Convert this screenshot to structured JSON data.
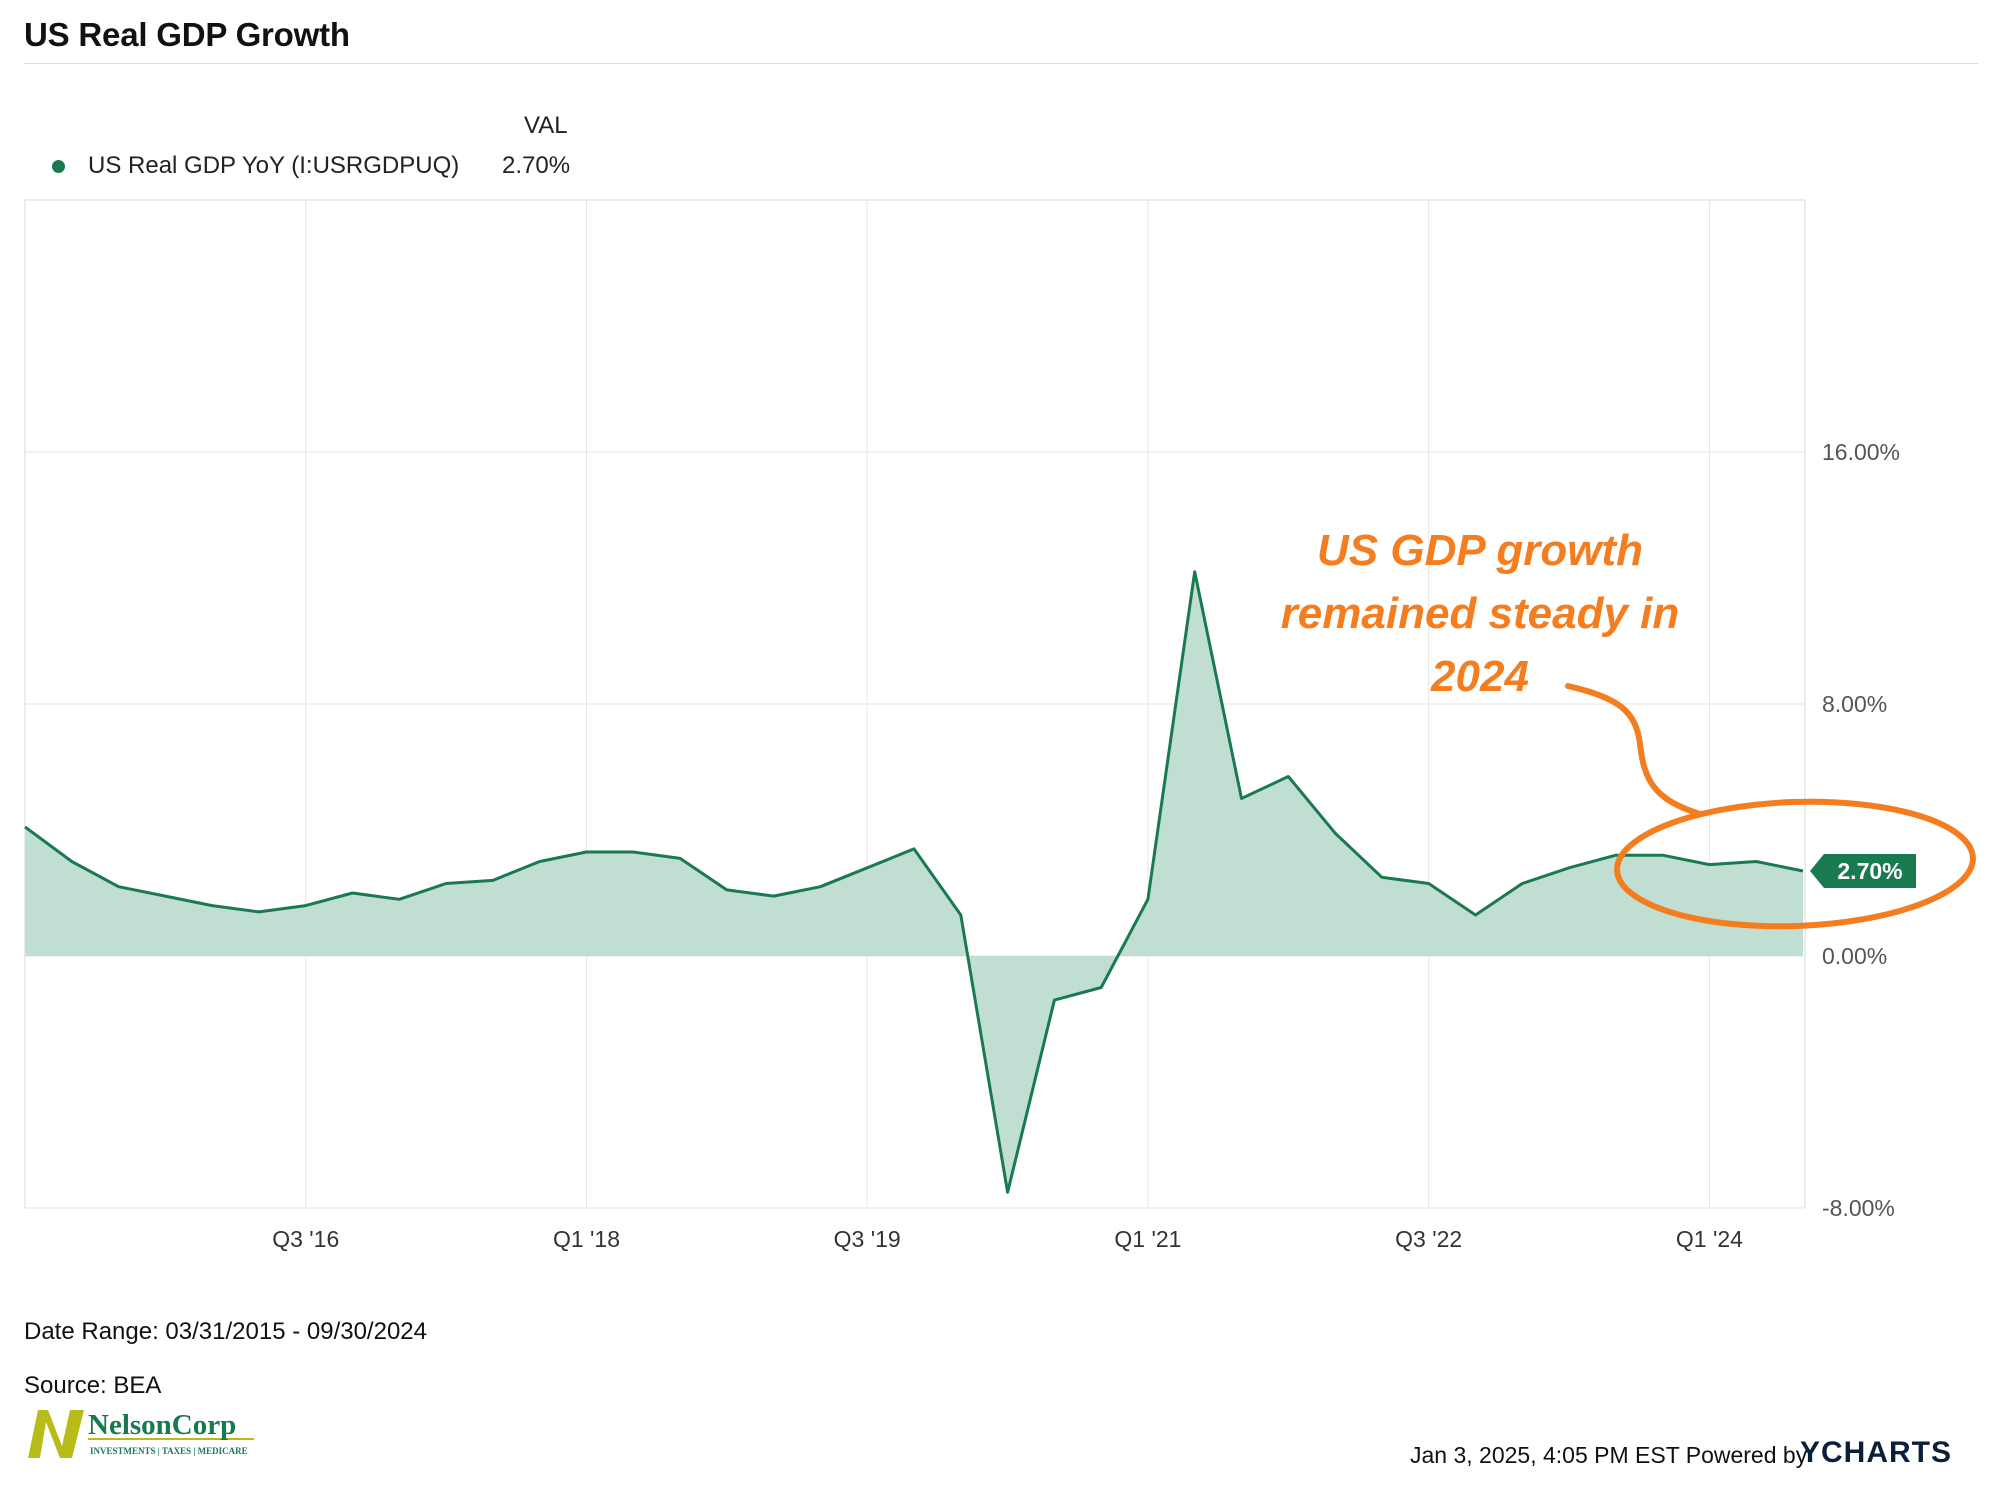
{
  "header": {
    "title": "US Real GDP Growth"
  },
  "legend": {
    "column_header": "VAL",
    "series_name": "US Real GDP YoY (I:USRGDPUQ)",
    "series_value": "2.70%"
  },
  "chart_data": {
    "type": "area",
    "title": "US Real GDP Growth",
    "xlabel": "",
    "ylabel": "",
    "x": [
      "Q1 '15",
      "Q2 '15",
      "Q3 '15",
      "Q4 '15",
      "Q1 '16",
      "Q2 '16",
      "Q3 '16",
      "Q4 '16",
      "Q1 '17",
      "Q2 '17",
      "Q3 '17",
      "Q4 '17",
      "Q1 '18",
      "Q2 '18",
      "Q3 '18",
      "Q4 '18",
      "Q1 '19",
      "Q2 '19",
      "Q3 '19",
      "Q4 '19",
      "Q1 '20",
      "Q2 '20",
      "Q3 '20",
      "Q4 '20",
      "Q1 '21",
      "Q2 '21",
      "Q3 '21",
      "Q4 '21",
      "Q1 '22",
      "Q2 '22",
      "Q3 '22",
      "Q4 '22",
      "Q1 '23",
      "Q2 '23",
      "Q3 '23",
      "Q4 '23",
      "Q1 '24",
      "Q2 '24",
      "Q3 '24"
    ],
    "series": [
      {
        "name": "US Real GDP YoY (I:USRGDPUQ)",
        "values": [
          4.1,
          3.0,
          2.2,
          1.9,
          1.6,
          1.4,
          1.6,
          2.0,
          1.8,
          2.3,
          2.4,
          3.0,
          3.3,
          3.3,
          3.1,
          2.1,
          1.9,
          2.2,
          2.8,
          3.4,
          1.3,
          -7.5,
          -1.4,
          -1.0,
          1.8,
          12.2,
          5.0,
          5.7,
          3.9,
          2.5,
          2.3,
          1.3,
          2.3,
          2.8,
          3.2,
          3.2,
          2.9,
          3.0,
          2.7
        ]
      }
    ],
    "x_ticks": [
      "Q3 '16",
      "Q1 '18",
      "Q3 '19",
      "Q1 '21",
      "Q3 '22",
      "Q1 '24"
    ],
    "y_ticks": [
      "16.00%",
      "8.00%",
      "0.00%",
      "-8.00%"
    ],
    "y_tick_values": [
      16,
      8,
      0,
      -8
    ],
    "ylim": [
      -8,
      24
    ],
    "grid": true,
    "last_value_label": "2.70%",
    "annotation": {
      "lines": [
        "US GDP growth",
        "remained steady in",
        "2024"
      ],
      "color": "#f47d20"
    },
    "colors": {
      "line": "#1a7a4f",
      "fill": "#c1ded2",
      "badge": "#1a7a4f"
    }
  },
  "footer": {
    "date_range": "Date Range: 03/31/2015 - 09/30/2024",
    "source": "Source: BEA",
    "timestamp": "Jan 3, 2025, 4:05 PM EST Powered by",
    "brand": "YCHARTS"
  },
  "logo": {
    "name": "NelsonCorp",
    "tagline": "Investments | Taxes | Medicare"
  }
}
